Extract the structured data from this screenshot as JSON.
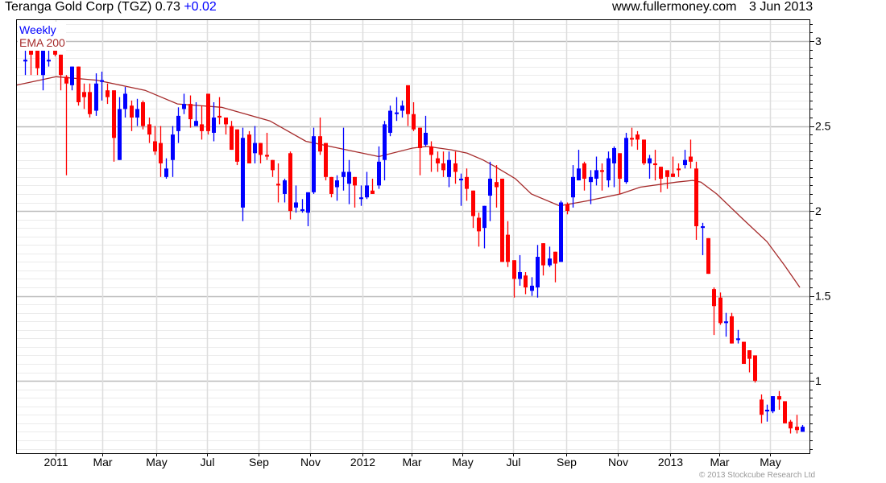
{
  "header": {
    "title": "Teranga Gold Corp (TGZ) 0.73",
    "change": "+0.02",
    "site": "www.fullermoney.com",
    "date": "3 Jun 2013"
  },
  "copyright": "© 2013 Stockcube Research Ltd",
  "colors": {
    "up": "#0000ff",
    "down": "#ff0000",
    "ema": "#a52a2a"
  },
  "chart_data": {
    "type": "candlestick",
    "title": "Teranga Gold Corp (TGZ)",
    "interval_label": "Weekly",
    "ema_label": "EMA 200",
    "last": 0.73,
    "last_change": 0.02,
    "ylim": [
      0.574,
      3.128
    ],
    "yticks": [
      {
        "v": 3,
        "label": "3"
      },
      {
        "v": 2.5,
        "label": "2.5"
      },
      {
        "v": 2,
        "label": "2"
      },
      {
        "v": 1.5,
        "label": "1.5"
      },
      {
        "v": 1,
        "label": "1"
      }
    ],
    "xticks": [
      {
        "week": 5.2,
        "label": "2011"
      },
      {
        "week": 13.1,
        "label": "Mar"
      },
      {
        "week": 22.3,
        "label": "May"
      },
      {
        "week": 30.9,
        "label": "Jul"
      },
      {
        "week": 39.7,
        "label": "Sep"
      },
      {
        "week": 48.4,
        "label": "Nov"
      },
      {
        "week": 57.3,
        "label": "2012"
      },
      {
        "week": 65.7,
        "label": "Mar"
      },
      {
        "week": 74.3,
        "label": "May"
      },
      {
        "week": 82.9,
        "label": "Jul"
      },
      {
        "week": 91.9,
        "label": "Sep"
      },
      {
        "week": 100.7,
        "label": "Nov"
      },
      {
        "week": 109.6,
        "label": "2013"
      },
      {
        "week": 117.9,
        "label": "Mar"
      },
      {
        "week": 126.5,
        "label": "May"
      }
    ],
    "ohlc": [
      [
        2.88,
        2.95,
        2.8,
        2.89
      ],
      [
        2.95,
        2.95,
        2.8,
        2.92
      ],
      [
        2.95,
        2.95,
        2.8,
        2.84
      ],
      [
        2.8,
        2.95,
        2.71,
        2.95
      ],
      [
        2.88,
        2.95,
        2.85,
        2.89
      ],
      [
        2.95,
        2.95,
        2.91,
        2.92
      ],
      [
        2.92,
        2.92,
        2.71,
        2.8
      ],
      [
        2.79,
        2.8,
        2.21,
        2.75
      ],
      [
        2.74,
        2.85,
        2.71,
        2.85
      ],
      [
        2.85,
        2.85,
        2.62,
        2.64
      ],
      [
        2.7,
        2.75,
        2.6,
        2.67
      ],
      [
        2.7,
        2.75,
        2.55,
        2.57
      ],
      [
        2.59,
        2.81,
        2.56,
        2.75
      ],
      [
        2.76,
        2.82,
        2.65,
        2.77
      ],
      [
        2.71,
        2.75,
        2.63,
        2.67
      ],
      [
        2.71,
        2.71,
        2.29,
        2.43
      ],
      [
        2.3,
        2.67,
        2.3,
        2.6
      ],
      [
        2.6,
        2.73,
        2.55,
        2.69
      ],
      [
        2.62,
        2.65,
        2.47,
        2.55
      ],
      [
        2.55,
        2.66,
        2.5,
        2.6
      ],
      [
        2.64,
        2.65,
        2.48,
        2.5
      ],
      [
        2.51,
        2.55,
        2.4,
        2.45
      ],
      [
        2.41,
        2.5,
        2.33,
        2.35
      ],
      [
        2.4,
        2.5,
        2.2,
        2.28
      ],
      [
        2.2,
        2.31,
        2.19,
        2.25
      ],
      [
        2.3,
        2.5,
        2.2,
        2.45
      ],
      [
        2.47,
        2.61,
        2.4,
        2.56
      ],
      [
        2.6,
        2.69,
        2.57,
        2.63
      ],
      [
        2.63,
        2.68,
        2.49,
        2.54
      ],
      [
        2.5,
        2.64,
        2.5,
        2.53
      ],
      [
        2.51,
        2.62,
        2.42,
        2.47
      ],
      [
        2.69,
        2.69,
        2.45,
        2.47
      ],
      [
        2.46,
        2.64,
        2.41,
        2.55
      ],
      [
        2.56,
        2.67,
        2.51,
        2.55
      ],
      [
        2.55,
        2.55,
        2.45,
        2.51
      ],
      [
        2.5,
        2.53,
        2.36,
        2.36
      ],
      [
        2.48,
        2.48,
        2.27,
        2.29
      ],
      [
        2.02,
        2.49,
        1.94,
        2.43
      ],
      [
        2.45,
        2.47,
        2.28,
        2.28
      ],
      [
        2.34,
        2.5,
        2.28,
        2.4
      ],
      [
        2.4,
        2.4,
        2.28,
        2.33
      ],
      [
        2.33,
        2.46,
        2.3,
        2.32
      ],
      [
        2.3,
        2.3,
        2.2,
        2.24
      ],
      [
        2.16,
        2.28,
        2.05,
        2.15
      ],
      [
        2.1,
        2.19,
        2.05,
        2.18
      ],
      [
        2.34,
        2.35,
        1.95,
        2.0
      ],
      [
        2.02,
        2.15,
        1.99,
        2.05
      ],
      [
        2.0,
        2.07,
        1.99,
        2.01
      ],
      [
        1.99,
        2.11,
        1.91,
        2.11
      ],
      [
        2.11,
        2.49,
        2.1,
        2.44
      ],
      [
        2.44,
        2.55,
        2.33,
        2.35
      ],
      [
        2.4,
        2.4,
        2.18,
        2.2
      ],
      [
        2.2,
        2.2,
        2.08,
        2.1
      ],
      [
        2.14,
        2.21,
        2.06,
        2.18
      ],
      [
        2.2,
        2.49,
        2.12,
        2.23
      ],
      [
        2.16,
        2.3,
        2.04,
        2.23
      ],
      [
        2.2,
        2.2,
        2.02,
        2.15
      ],
      [
        2.07,
        2.15,
        2.03,
        2.08
      ],
      [
        2.08,
        2.23,
        2.07,
        2.15
      ],
      [
        2.12,
        2.19,
        2.1,
        2.1
      ],
      [
        2.15,
        2.38,
        2.13,
        2.29
      ],
      [
        2.3,
        2.53,
        2.18,
        2.51
      ],
      [
        2.46,
        2.62,
        2.44,
        2.59
      ],
      [
        2.57,
        2.67,
        2.53,
        2.58
      ],
      [
        2.59,
        2.65,
        2.55,
        2.62
      ],
      [
        2.74,
        2.74,
        2.5,
        2.57
      ],
      [
        2.57,
        2.64,
        2.47,
        2.48
      ],
      [
        2.49,
        2.49,
        2.21,
        2.37
      ],
      [
        2.39,
        2.56,
        2.38,
        2.46
      ],
      [
        2.38,
        2.41,
        2.23,
        2.33
      ],
      [
        2.31,
        2.35,
        2.23,
        2.28
      ],
      [
        2.28,
        2.35,
        2.2,
        2.24
      ],
      [
        2.2,
        2.35,
        2.14,
        2.3
      ],
      [
        2.28,
        2.35,
        2.16,
        2.23
      ],
      [
        2.18,
        2.22,
        2.03,
        2.19
      ],
      [
        2.2,
        2.25,
        2.06,
        2.13
      ],
      [
        2.12,
        2.12,
        1.9,
        1.97
      ],
      [
        1.96,
        1.99,
        1.79,
        1.88
      ],
      [
        1.9,
        2.03,
        1.78,
        2.03
      ],
      [
        2.09,
        2.29,
        1.94,
        2.19
      ],
      [
        2.17,
        2.27,
        2.02,
        2.14
      ],
      [
        2.19,
        2.19,
        1.7,
        1.7
      ],
      [
        1.86,
        1.94,
        1.67,
        1.7
      ],
      [
        1.71,
        1.71,
        1.49,
        1.6
      ],
      [
        1.6,
        1.74,
        1.56,
        1.64
      ],
      [
        1.62,
        1.64,
        1.51,
        1.55
      ],
      [
        1.53,
        1.61,
        1.5,
        1.56
      ],
      [
        1.55,
        1.8,
        1.49,
        1.73
      ],
      [
        1.81,
        1.81,
        1.62,
        1.68
      ],
      [
        1.68,
        1.79,
        1.67,
        1.72
      ],
      [
        1.76,
        1.76,
        1.58,
        1.69
      ],
      [
        1.7,
        2.06,
        1.7,
        2.05
      ],
      [
        2.04,
        2.05,
        1.98,
        2.0
      ],
      [
        2.08,
        2.27,
        2.02,
        2.2
      ],
      [
        2.18,
        2.36,
        2.18,
        2.25
      ],
      [
        2.28,
        2.29,
        2.12,
        2.19
      ],
      [
        2.17,
        2.24,
        2.04,
        2.2
      ],
      [
        2.19,
        2.32,
        2.15,
        2.24
      ],
      [
        2.24,
        2.28,
        2.12,
        2.23
      ],
      [
        2.18,
        2.35,
        2.14,
        2.31
      ],
      [
        2.28,
        2.38,
        2.14,
        2.37
      ],
      [
        2.34,
        2.34,
        2.1,
        2.19
      ],
      [
        2.17,
        2.46,
        2.16,
        2.43
      ],
      [
        2.43,
        2.49,
        2.38,
        2.42
      ],
      [
        2.45,
        2.47,
        2.36,
        2.42
      ],
      [
        2.42,
        2.42,
        2.27,
        2.28
      ],
      [
        2.28,
        2.33,
        2.19,
        2.31
      ],
      [
        2.28,
        2.36,
        2.18,
        2.27
      ],
      [
        2.26,
        2.26,
        2.11,
        2.19
      ],
      [
        2.24,
        2.24,
        2.13,
        2.2
      ],
      [
        2.22,
        2.32,
        2.2,
        2.2
      ],
      [
        2.25,
        2.28,
        2.2,
        2.24
      ],
      [
        2.27,
        2.36,
        2.25,
        2.3
      ],
      [
        2.32,
        2.42,
        2.25,
        2.29
      ],
      [
        2.25,
        2.29,
        1.83,
        1.91
      ],
      [
        1.9,
        1.93,
        1.74,
        1.91
      ],
      [
        1.84,
        1.84,
        1.63,
        1.63
      ],
      [
        1.54,
        1.55,
        1.27,
        1.44
      ],
      [
        1.49,
        1.52,
        1.33,
        1.34
      ],
      [
        1.34,
        1.4,
        1.26,
        1.35
      ],
      [
        1.38,
        1.4,
        1.22,
        1.22
      ],
      [
        1.24,
        1.3,
        1.22,
        1.25
      ],
      [
        1.23,
        1.23,
        1.1,
        1.1
      ],
      [
        1.18,
        1.18,
        1.05,
        1.13
      ],
      [
        1.15,
        1.15,
        0.99,
        1.0
      ],
      [
        0.89,
        0.92,
        0.75,
        0.8
      ],
      [
        0.82,
        0.86,
        0.76,
        0.83
      ],
      [
        0.82,
        0.91,
        0.81,
        0.91
      ],
      [
        0.91,
        0.94,
        0.83,
        0.89
      ],
      [
        0.88,
        0.88,
        0.75,
        0.75
      ],
      [
        0.76,
        0.77,
        0.69,
        0.72
      ],
      [
        0.73,
        0.8,
        0.69,
        0.71
      ],
      [
        0.7,
        0.74,
        0.7,
        0.73
      ]
    ],
    "ema200": [
      [
        -1.5,
        2.74
      ],
      [
        5.3,
        2.79
      ],
      [
        12.2,
        2.77
      ],
      [
        20.4,
        2.71
      ],
      [
        25.9,
        2.63
      ],
      [
        33.4,
        2.61
      ],
      [
        41.6,
        2.53
      ],
      [
        47.7,
        2.41
      ],
      [
        54.6,
        2.36
      ],
      [
        60.1,
        2.32
      ],
      [
        65.8,
        2.37
      ],
      [
        68.3,
        2.38
      ],
      [
        72.4,
        2.36
      ],
      [
        75.1,
        2.34
      ],
      [
        77.8,
        2.3
      ],
      [
        79.9,
        2.26
      ],
      [
        83.3,
        2.19
      ],
      [
        86.0,
        2.1
      ],
      [
        90.8,
        2.03
      ],
      [
        95.6,
        2.06
      ],
      [
        101.1,
        2.1
      ],
      [
        104.5,
        2.14
      ],
      [
        110.7,
        2.17
      ],
      [
        113.4,
        2.18
      ],
      [
        114.8,
        2.17
      ],
      [
        117.5,
        2.1
      ],
      [
        122,
        1.95
      ],
      [
        126,
        1.82
      ],
      [
        129,
        1.68
      ],
      [
        131.6,
        1.55
      ]
    ]
  }
}
